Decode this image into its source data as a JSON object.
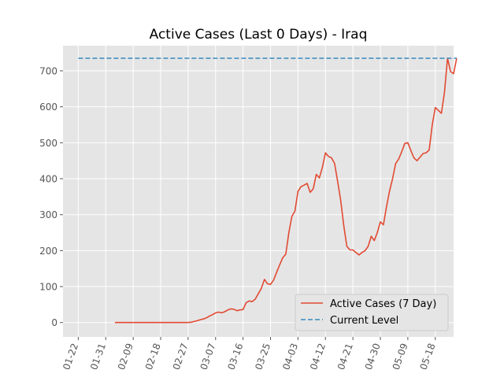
{
  "chart_data": {
    "type": "line",
    "title": "Active Cases (Last 0 Days) - Iraq",
    "xlabel": "",
    "ylabel": "",
    "x_tick_labels": [
      "01-22",
      "01-31",
      "02-09",
      "02-18",
      "02-27",
      "03-07",
      "03-16",
      "03-25",
      "04-03",
      "04-12",
      "04-21",
      "04-30",
      "05-09",
      "05-18"
    ],
    "y_ticks": [
      0,
      100,
      200,
      300,
      400,
      500,
      600,
      700
    ],
    "ylim": [
      -40,
      770
    ],
    "xlim_day": [
      -5,
      123
    ],
    "grid": true,
    "legend": "lower-right",
    "series": [
      {
        "name": "Active Cases (7 Day)",
        "color": "#E24A33",
        "style": "solid",
        "points": [
          [
            12,
            0
          ],
          [
            20,
            0
          ],
          [
            30,
            0
          ],
          [
            36,
            0
          ],
          [
            37,
            1
          ],
          [
            38,
            3
          ],
          [
            39,
            5
          ],
          [
            40,
            8
          ],
          [
            41,
            10
          ],
          [
            42,
            13
          ],
          [
            43,
            18
          ],
          [
            44,
            22
          ],
          [
            45,
            27
          ],
          [
            46,
            29
          ],
          [
            47,
            27
          ],
          [
            48,
            30
          ],
          [
            49,
            35
          ],
          [
            50,
            38
          ],
          [
            51,
            37
          ],
          [
            52,
            33
          ],
          [
            53,
            35
          ],
          [
            54,
            36
          ],
          [
            55,
            55
          ],
          [
            56,
            60
          ],
          [
            57,
            58
          ],
          [
            58,
            65
          ],
          [
            59,
            80
          ],
          [
            60,
            95
          ],
          [
            61,
            120
          ],
          [
            62,
            108
          ],
          [
            63,
            106
          ],
          [
            64,
            118
          ],
          [
            65,
            140
          ],
          [
            66,
            160
          ],
          [
            67,
            180
          ],
          [
            68,
            190
          ],
          [
            69,
            250
          ],
          [
            70,
            295
          ],
          [
            71,
            310
          ],
          [
            72,
            365
          ],
          [
            73,
            378
          ],
          [
            74,
            382
          ],
          [
            75,
            387
          ],
          [
            76,
            362
          ],
          [
            77,
            372
          ],
          [
            78,
            412
          ],
          [
            79,
            402
          ],
          [
            80,
            432
          ],
          [
            81,
            472
          ],
          [
            82,
            462
          ],
          [
            83,
            458
          ],
          [
            84,
            442
          ],
          [
            85,
            392
          ],
          [
            86,
            340
          ],
          [
            87,
            270
          ],
          [
            88,
            212
          ],
          [
            89,
            202
          ],
          [
            90,
            202
          ],
          [
            91,
            195
          ],
          [
            92,
            188
          ],
          [
            93,
            195
          ],
          [
            94,
            200
          ],
          [
            95,
            212
          ],
          [
            96,
            240
          ],
          [
            97,
            228
          ],
          [
            98,
            250
          ],
          [
            99,
            280
          ],
          [
            100,
            272
          ],
          [
            101,
            322
          ],
          [
            102,
            365
          ],
          [
            103,
            400
          ],
          [
            104,
            442
          ],
          [
            105,
            455
          ],
          [
            106,
            475
          ],
          [
            107,
            498
          ],
          [
            108,
            500
          ],
          [
            109,
            478
          ],
          [
            110,
            458
          ],
          [
            111,
            450
          ],
          [
            112,
            460
          ],
          [
            113,
            470
          ],
          [
            114,
            472
          ],
          [
            115,
            480
          ],
          [
            116,
            550
          ],
          [
            117,
            598
          ],
          [
            118,
            590
          ],
          [
            119,
            582
          ],
          [
            120,
            640
          ],
          [
            121,
            735
          ],
          [
            122,
            698
          ],
          [
            123,
            692
          ],
          [
            124,
            735
          ]
        ]
      },
      {
        "name": "Current Level",
        "color": "#348ABD",
        "style": "dashed",
        "points": [
          [
            0,
            735
          ],
          [
            124,
            735
          ]
        ]
      }
    ]
  }
}
